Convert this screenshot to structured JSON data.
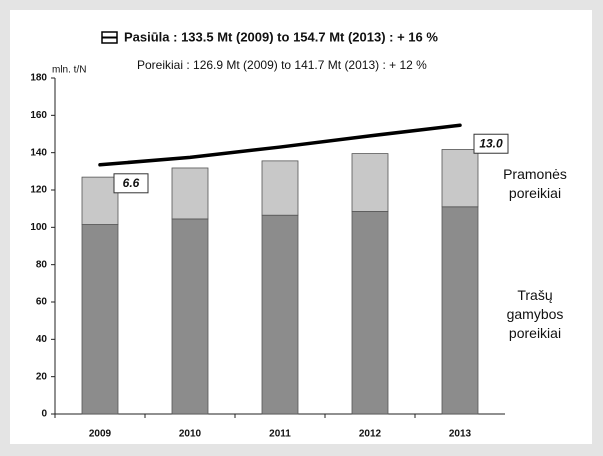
{
  "chart_data": {
    "type": "bar",
    "subtitle": "Poreikiai : 126.9 Mt (2009) to 141.7 Mt (2013) : + 12 %",
    "ylabel": "mln. t/N",
    "categories": [
      "2009",
      "2010",
      "2011",
      "2012",
      "2013"
    ],
    "stacked": true,
    "series": [
      {
        "name": "Trašų gamybos poreikiai",
        "color": "#8c8c8c",
        "values": [
          101.5,
          104.5,
          106.5,
          108.5,
          111
        ]
      },
      {
        "name": "Pramonės poreikiai",
        "color": "#c8c8c8",
        "values": [
          25.4,
          27.3,
          29.1,
          31,
          30.7
        ]
      },
      {
        "name": "Pasiūla : 133.5 Mt (2009) to 154.7 Mt (2013) : + 16 %",
        "type": "line",
        "color": "#000000",
        "values": [
          133.5,
          137.5,
          143,
          149,
          154.7
        ]
      }
    ],
    "annotations": [
      {
        "category": "2009",
        "text": "6.6"
      },
      {
        "category": "2013",
        "text": "13.0"
      }
    ],
    "ylim": [
      0,
      180
    ],
    "yticks": [
      0,
      20,
      40,
      60,
      80,
      100,
      120,
      140,
      160,
      180
    ]
  }
}
